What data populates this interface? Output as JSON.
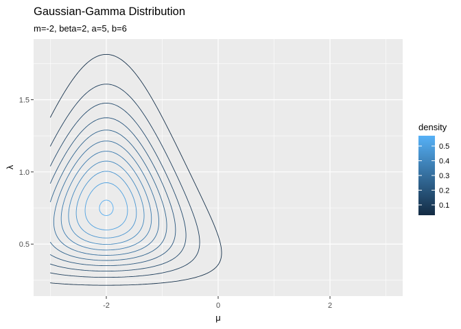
{
  "chart_data": {
    "type": "contour",
    "title": "Gaussian-Gamma Distribution",
    "subtitle": "m=-2, beta=2, a=5, b=6",
    "xlabel": "μ",
    "ylabel": "λ",
    "xlim": [
      -3.3,
      3.3
    ],
    "ylim": [
      0.14,
      1.92
    ],
    "x_ticks": [
      -2,
      0,
      2
    ],
    "x_tick_labels": [
      "-2",
      "0",
      "2"
    ],
    "y_ticks": [
      0.5,
      1.0,
      1.5
    ],
    "y_tick_labels": [
      "0.5",
      "1.0",
      "1.5"
    ],
    "x_grid_range": [
      -3,
      3
    ],
    "params": {
      "m": -2,
      "beta": 2,
      "a": 5,
      "b": 6
    },
    "contour_levels": [
      0.05,
      0.1,
      0.15,
      0.2,
      0.25,
      0.3,
      0.35,
      0.4,
      0.45,
      0.5,
      0.55
    ],
    "grid": true,
    "panel_background": "#EBEBEB",
    "legend": {
      "title": "density",
      "position": "right",
      "breaks": [
        0.1,
        0.2,
        0.3,
        0.4,
        0.5
      ],
      "break_labels": [
        "0.1",
        "0.2",
        "0.3",
        "0.4",
        "0.5"
      ],
      "range": [
        0.03,
        0.57
      ],
      "color_low": "#132B43",
      "color_high": "#56B1F7"
    }
  }
}
